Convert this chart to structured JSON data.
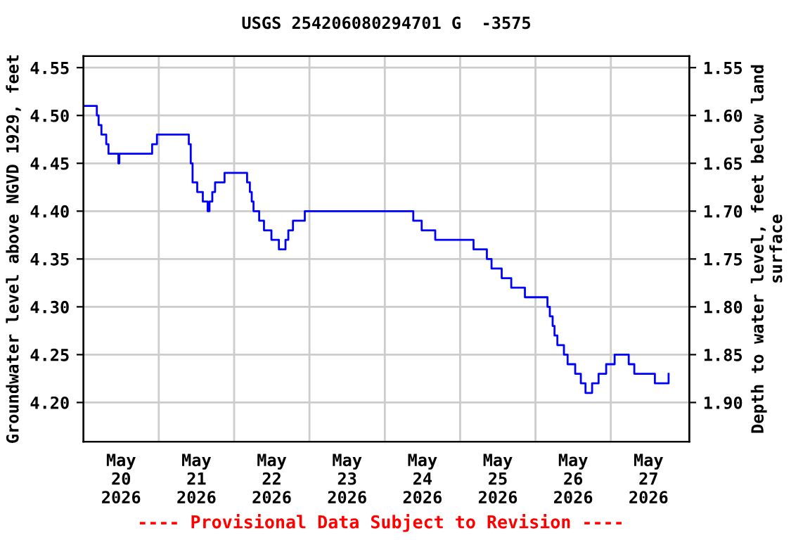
{
  "chart_data": {
    "type": "step",
    "title": "USGS 254206080294701 G  -3575",
    "xlabel": null,
    "ylabel": "Groundwater level above NGVD 1929, feet",
    "y2label": "Depth to water level, feet below land\nsurface",
    "annotations": [
      "---- Provisional Data Subject to Revision ----"
    ],
    "x": [
      "2026-05-20T00:00",
      "2026-05-20T04:16",
      "2026-05-20T04:50",
      "2026-05-20T05:44",
      "2026-05-20T07:16",
      "2026-05-20T07:59",
      "2026-05-20T11:08",
      "2026-05-20T11:26",
      "2026-05-20T21:53",
      "2026-05-20T23:25",
      "2026-05-21T09:34",
      "2026-05-21T10:11",
      "2026-05-21T10:46",
      "2026-05-21T12:15",
      "2026-05-21T14:02",
      "2026-05-21T15:34",
      "2026-05-21T16:09",
      "2026-05-21T17:03",
      "2026-05-21T17:56",
      "2026-05-21T20:57",
      "2026-05-22T04:08",
      "2026-05-22T05:01",
      "2026-05-22T05:37",
      "2026-05-22T06:11",
      "2026-05-22T07:59",
      "2026-05-22T09:31",
      "2026-05-22T11:53",
      "2026-05-22T14:16",
      "2026-05-22T16:22",
      "2026-05-22T17:16",
      "2026-05-22T18:45",
      "2026-05-22T22:31",
      "2026-05-24T09:04",
      "2026-05-24T11:45",
      "2026-05-24T16:04",
      "2026-05-25T04:16",
      "2026-05-25T08:31",
      "2026-05-25T10:00",
      "2026-05-25T13:14",
      "2026-05-25T16:17",
      "2026-05-25T20:38",
      "2026-05-26T03:49",
      "2026-05-26T04:34",
      "2026-05-26T05:28",
      "2026-05-26T06:04",
      "2026-05-26T06:58",
      "2026-05-26T09:04",
      "2026-05-26T10:14",
      "2026-05-26T12:39",
      "2026-05-26T14:27",
      "2026-05-26T15:56",
      "2026-05-26T18:02",
      "2026-05-26T20:06",
      "2026-05-26T22:31",
      "2026-05-27T01:13",
      "2026-05-27T05:42",
      "2026-05-27T07:29",
      "2026-05-27T14:02",
      "2026-05-27T18:24"
    ],
    "series": [
      {
        "color": "#0000ff",
        "values": [
          4.51,
          4.5,
          4.49,
          4.48,
          4.47,
          4.46,
          4.45,
          4.46,
          4.47,
          4.48,
          4.47,
          4.45,
          4.43,
          4.42,
          4.41,
          4.4,
          4.41,
          4.42,
          4.43,
          4.44,
          4.43,
          4.42,
          4.41,
          4.4,
          4.39,
          4.38,
          4.37,
          4.36,
          4.37,
          4.38,
          4.39,
          4.4,
          4.39,
          4.38,
          4.37,
          4.36,
          4.35,
          4.34,
          4.33,
          4.32,
          4.31,
          4.3,
          4.29,
          4.28,
          4.27,
          4.26,
          4.25,
          4.24,
          4.23,
          4.22,
          4.21,
          4.22,
          4.23,
          4.24,
          4.25,
          4.24,
          4.23,
          4.22,
          4.23
        ]
      }
    ],
    "xlim": [
      "2026-05-20T00:00",
      "2026-05-28T01:00"
    ],
    "xticks": [
      {
        "value": "2026-05-21T00:00",
        "label": null
      },
      {
        "value": "2026-05-22T00:00",
        "label": null
      },
      {
        "value": "2026-05-23T00:00",
        "label": null
      },
      {
        "value": "2026-05-24T00:00",
        "label": null
      },
      {
        "value": "2026-05-25T00:00",
        "label": null
      },
      {
        "value": "2026-05-26T00:00",
        "label": null
      },
      {
        "value": "2026-05-27T00:00",
        "label": null
      },
      {
        "value": "2026-05-20T12:00",
        "label": "May\n20\n2026"
      },
      {
        "value": "2026-05-21T12:00",
        "label": "May\n21\n2026"
      },
      {
        "value": "2026-05-22T12:00",
        "label": "May\n22\n2026"
      },
      {
        "value": "2026-05-23T12:00",
        "label": "May\n23\n2026"
      },
      {
        "value": "2026-05-24T12:00",
        "label": "May\n24\n2026"
      },
      {
        "value": "2026-05-25T12:00",
        "label": "May\n25\n2026"
      },
      {
        "value": "2026-05-26T12:00",
        "label": "May\n26\n2026"
      },
      {
        "value": "2026-05-27T12:00",
        "label": "May\n27\n2026"
      }
    ],
    "ylim": [
      4.159,
      4.562
    ],
    "yticks": [
      {
        "value": 4.2,
        "label": "4.20"
      },
      {
        "value": 4.25,
        "label": "4.25"
      },
      {
        "value": 4.3,
        "label": "4.30"
      },
      {
        "value": 4.35,
        "label": "4.35"
      },
      {
        "value": 4.4,
        "label": "4.40"
      },
      {
        "value": 4.45,
        "label": "4.45"
      },
      {
        "value": 4.5,
        "label": "4.50"
      },
      {
        "value": 4.55,
        "label": "4.55"
      }
    ],
    "y2lim": [
      1.941,
      1.538
    ],
    "y2ticks": [
      {
        "value": 1.55,
        "label": "1.55"
      },
      {
        "value": 1.6,
        "label": "1.60"
      },
      {
        "value": 1.65,
        "label": "1.65"
      },
      {
        "value": 1.7,
        "label": "1.70"
      },
      {
        "value": 1.75,
        "label": "1.75"
      },
      {
        "value": 1.8,
        "label": "1.80"
      },
      {
        "value": 1.85,
        "label": "1.85"
      },
      {
        "value": 1.9,
        "label": "1.90"
      }
    ],
    "grid": true
  }
}
